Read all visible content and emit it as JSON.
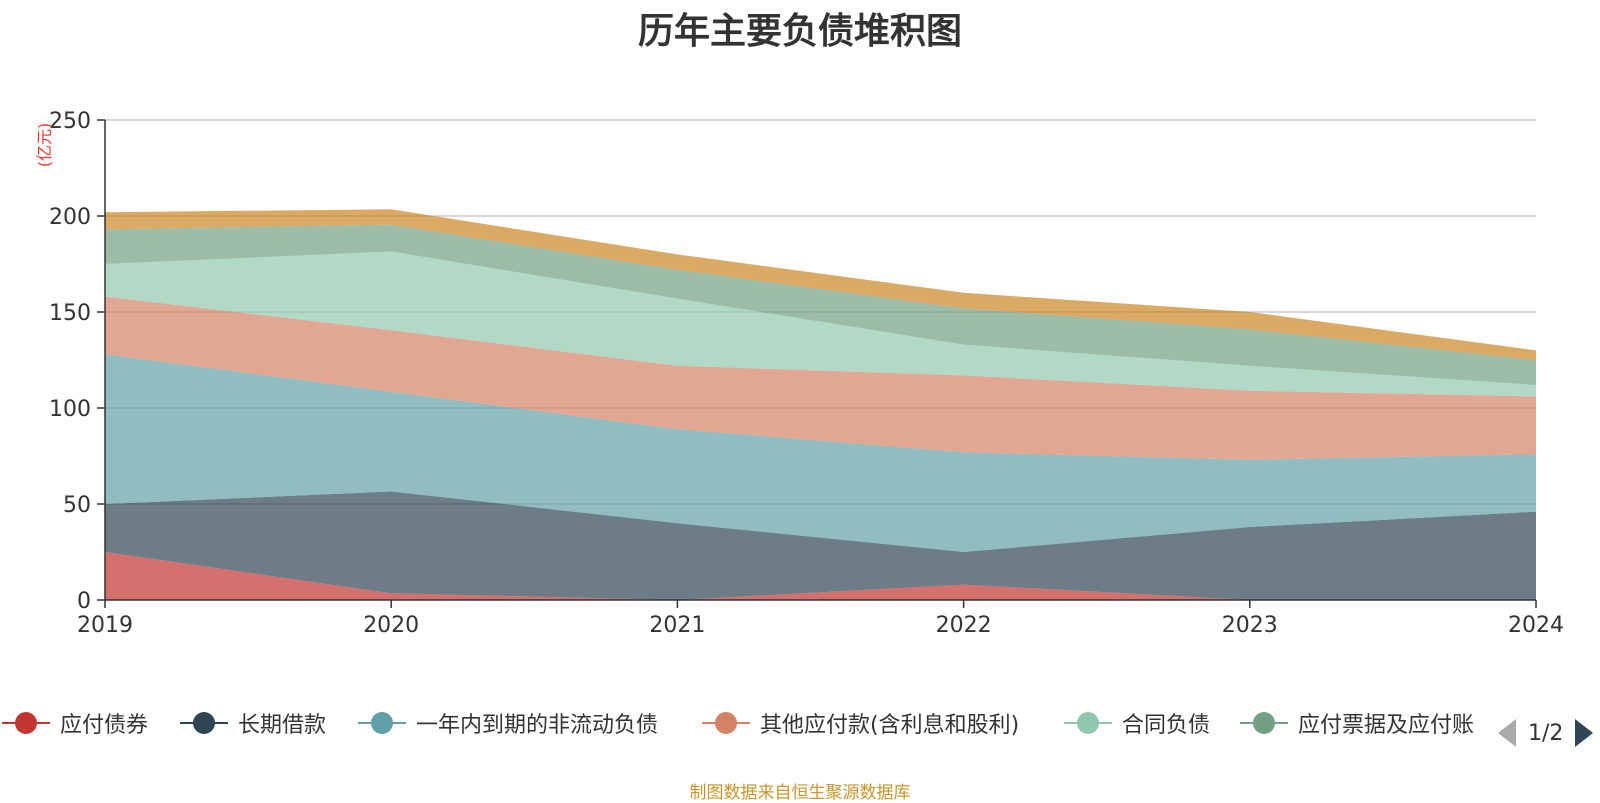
{
  "chart_data": {
    "type": "area",
    "stacked": true,
    "title": "历年主要负债堆积图",
    "unit_label": "(亿元)",
    "x": [
      "2019",
      "2020",
      "2021",
      "2022",
      "2023",
      "2024"
    ],
    "ylim": [
      0,
      250
    ],
    "yticks": [
      0,
      50,
      100,
      150,
      200,
      250
    ],
    "grid": true,
    "legend_position": "bottom",
    "series": [
      {
        "name": "应付债券",
        "color": "#c23531",
        "values": [
          25,
          3.5,
          0,
          8,
          0,
          0
        ]
      },
      {
        "name": "长期借款",
        "color": "#2f4554",
        "values": [
          25,
          53,
          40,
          17,
          38,
          46
        ]
      },
      {
        "name": "一年内到期的非流动负债",
        "color": "#61a0a8",
        "values": [
          78,
          52,
          49,
          52,
          35,
          30
        ]
      },
      {
        "name": "其他应付款(含利息和股利)",
        "color": "#d48265",
        "values": [
          30,
          32,
          33,
          40,
          36,
          30
        ]
      },
      {
        "name": "合同负债",
        "color": "#91c7ae",
        "values": [
          17,
          41,
          35,
          16,
          13,
          6
        ]
      },
      {
        "name": "应付票据及应付账款",
        "color": "#749f83",
        "values": [
          18,
          14,
          15,
          19,
          19,
          13
        ]
      },
      {
        "name": "",
        "color": "#ca8622",
        "values": [
          9,
          8,
          8,
          8,
          9,
          5
        ]
      }
    ]
  },
  "legend": {
    "items": [
      "应付债券",
      "长期借款",
      "一年内到期的非流动负债",
      "其他应付款(含利息和股利)",
      "合同负债",
      "应付票据及应付账"
    ],
    "page_text": "1/2"
  },
  "footnote": "制图数据来自恒生聚源数据库"
}
